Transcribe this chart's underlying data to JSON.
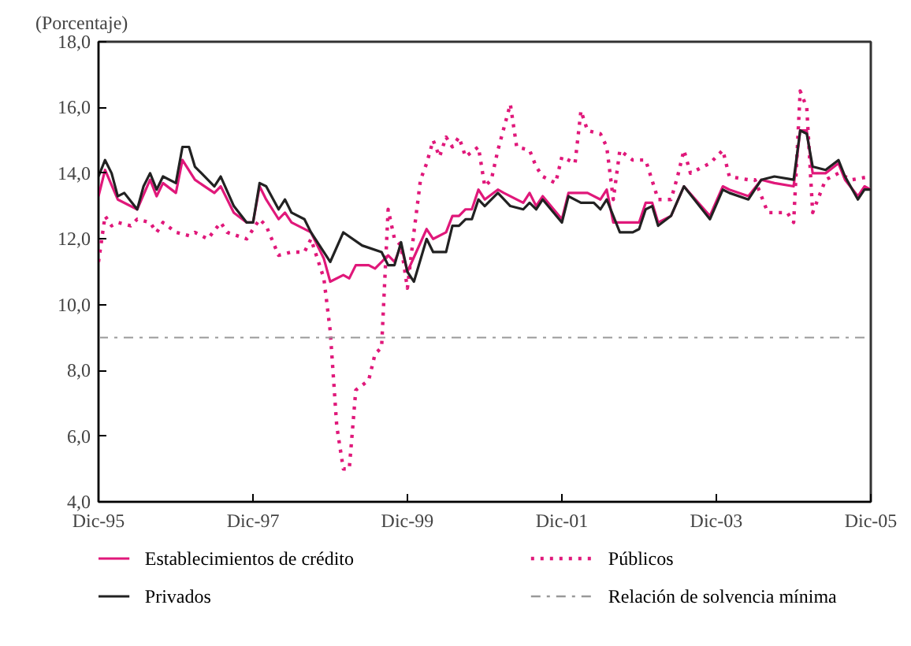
{
  "chart_data": {
    "type": "line",
    "ylabel": "(Porcentaje)",
    "xlim": [
      "1995-12",
      "2005-12"
    ],
    "ylim": [
      4,
      18
    ],
    "xticks": [
      {
        "value": "1995-12",
        "label": "Dic-95"
      },
      {
        "value": "1997-12",
        "label": "Dic-97"
      },
      {
        "value": "1999-12",
        "label": "Dic-99"
      },
      {
        "value": "2001-12",
        "label": "Dic-01"
      },
      {
        "value": "2003-12",
        "label": "Dic-03"
      },
      {
        "value": "2005-12",
        "label": "Dic-05"
      }
    ],
    "yticks": [
      {
        "value": 4,
        "label": "4,0"
      },
      {
        "value": 6,
        "label": "6,0"
      },
      {
        "value": 8,
        "label": "8,0"
      },
      {
        "value": 10,
        "label": "10,0"
      },
      {
        "value": 12,
        "label": "12,0"
      },
      {
        "value": 14,
        "label": "14,0"
      },
      {
        "value": 16,
        "label": "16,0"
      },
      {
        "value": 18,
        "label": "18,0"
      }
    ],
    "grid": false,
    "legend": "bottom",
    "series": [
      {
        "name": "Establecimientos de crédito",
        "color": "#e0187a",
        "line_style": "solid",
        "x": [
          "1995-12",
          "1996-01",
          "1996-03",
          "1996-06",
          "1996-08",
          "1996-09",
          "1996-10",
          "1996-12",
          "1997-01",
          "1997-03",
          "1997-06",
          "1997-07",
          "1997-09",
          "1997-11",
          "1997-12",
          "1998-01",
          "1998-02",
          "1998-04",
          "1998-05",
          "1998-06",
          "1998-09",
          "1998-11",
          "1998-12",
          "1999-02",
          "1999-03",
          "1999-04",
          "1999-06",
          "1999-07",
          "1999-09",
          "1999-10",
          "1999-11",
          "1999-12",
          "2000-03",
          "2000-04",
          "2000-06",
          "2000-07",
          "2000-08",
          "2000-09",
          "2000-10",
          "2000-11",
          "2000-12",
          "2001-02",
          "2001-03",
          "2001-06",
          "2001-07",
          "2001-08",
          "2001-09",
          "2001-12",
          "2002-01",
          "2002-04",
          "2002-06",
          "2002-07",
          "2002-08",
          "2002-12",
          "2003-01",
          "2003-02",
          "2003-03",
          "2003-05",
          "2003-07",
          "2003-11",
          "2004-01",
          "2004-02",
          "2004-05",
          "2004-07",
          "2004-09",
          "2004-12",
          "2005-01",
          "2005-02",
          "2005-03",
          "2005-05",
          "2005-07",
          "2005-08",
          "2005-10",
          "2005-11",
          "2005-12"
        ],
        "values": [
          13.3,
          14.1,
          13.2,
          12.9,
          13.8,
          13.3,
          13.7,
          13.4,
          14.4,
          13.8,
          13.4,
          13.6,
          12.8,
          12.5,
          12.5,
          13.6,
          13.2,
          12.6,
          12.8,
          12.5,
          12.2,
          11.4,
          10.7,
          10.9,
          10.8,
          11.2,
          11.2,
          11.1,
          11.5,
          11.3,
          11.8,
          11.0,
          12.3,
          12.0,
          12.2,
          12.7,
          12.7,
          12.9,
          12.9,
          13.5,
          13.2,
          13.5,
          13.4,
          13.1,
          13.4,
          13.0,
          13.3,
          12.6,
          13.4,
          13.4,
          13.2,
          13.5,
          12.5,
          12.5,
          13.1,
          13.1,
          12.5,
          12.7,
          13.6,
          12.7,
          13.6,
          13.5,
          13.3,
          13.8,
          13.7,
          13.6,
          15.3,
          15.3,
          14.0,
          14.0,
          14.3,
          13.8,
          13.3,
          13.6,
          13.5
        ]
      },
      {
        "name": "Públicos",
        "color": "#e0187a",
        "line_style": "dotted",
        "x": [
          "1995-12",
          "1996-01",
          "1996-02",
          "1996-03",
          "1996-05",
          "1996-06",
          "1996-08",
          "1996-09",
          "1996-10",
          "1996-12",
          "1997-02",
          "1997-03",
          "1997-05",
          "1997-07",
          "1997-08",
          "1997-11",
          "1998-01",
          "1998-02",
          "1998-04",
          "1998-06",
          "1998-08",
          "1998-09",
          "1998-11",
          "1998-12",
          "1999-01",
          "1999-02",
          "1999-03",
          "1999-04",
          "1999-06",
          "1999-07",
          "1999-08",
          "1999-09",
          "1999-10",
          "1999-11",
          "1999-12",
          "2000-01",
          "2000-02",
          "2000-03",
          "2000-04",
          "2000-05",
          "2000-06",
          "2000-07",
          "2000-08",
          "2000-09",
          "2000-11",
          "2000-12",
          "2001-01",
          "2001-02",
          "2001-04",
          "2001-05",
          "2001-07",
          "2001-08",
          "2001-09",
          "2001-11",
          "2001-12",
          "2002-02",
          "2002-03",
          "2002-04",
          "2002-06",
          "2002-07",
          "2002-08",
          "2002-09",
          "2002-11",
          "2003-01",
          "2003-03",
          "2003-05",
          "2003-06",
          "2003-07",
          "2003-08",
          "2003-11",
          "2004-01",
          "2004-02",
          "2004-05",
          "2004-06",
          "2004-08",
          "2004-11",
          "2004-12",
          "2005-01",
          "2005-02",
          "2005-03",
          "2005-05",
          "2005-07",
          "2005-09",
          "2005-12"
        ],
        "values": [
          11.3,
          12.7,
          12.4,
          12.5,
          12.4,
          12.6,
          12.5,
          12.2,
          12.5,
          12.2,
          12.1,
          12.2,
          12.0,
          12.5,
          12.2,
          12.0,
          12.6,
          12.4,
          11.5,
          11.6,
          11.6,
          12.0,
          10.8,
          9.2,
          6.3,
          5.0,
          5.0,
          7.4,
          7.7,
          8.5,
          8.7,
          12.9,
          12.0,
          11.8,
          10.5,
          12.2,
          13.8,
          14.3,
          15.0,
          14.5,
          15.1,
          14.8,
          15.1,
          14.5,
          14.8,
          13.6,
          13.8,
          14.7,
          16.1,
          14.8,
          14.7,
          14.2,
          13.9,
          13.7,
          14.5,
          14.3,
          15.9,
          15.3,
          15.2,
          14.8,
          13.2,
          14.7,
          14.4,
          14.4,
          13.2,
          13.2,
          13.9,
          14.7,
          14.0,
          14.3,
          14.7,
          13.9,
          13.8,
          13.8,
          12.8,
          12.8,
          12.5,
          16.5,
          16.0,
          12.8,
          13.8,
          14.0,
          13.8,
          13.9
        ]
      },
      {
        "name": "Privados",
        "color": "#222222",
        "line_style": "solid",
        "x": [
          "1995-12",
          "1996-01",
          "1996-02",
          "1996-03",
          "1996-04",
          "1996-06",
          "1996-07",
          "1996-08",
          "1996-09",
          "1996-10",
          "1996-12",
          "1997-01",
          "1997-02",
          "1997-03",
          "1997-04",
          "1997-06",
          "1997-07",
          "1997-09",
          "1997-11",
          "1997-12",
          "1998-01",
          "1998-02",
          "1998-04",
          "1998-05",
          "1998-06",
          "1998-08",
          "1998-09",
          "1998-12",
          "1999-02",
          "1999-05",
          "1999-08",
          "1999-09",
          "1999-10",
          "1999-11",
          "1999-12",
          "2000-01",
          "2000-03",
          "2000-04",
          "2000-06",
          "2000-07",
          "2000-08",
          "2000-09",
          "2000-10",
          "2000-11",
          "2000-12",
          "2001-02",
          "2001-04",
          "2001-06",
          "2001-07",
          "2001-08",
          "2001-09",
          "2001-12",
          "2002-01",
          "2002-03",
          "2002-05",
          "2002-06",
          "2002-07",
          "2002-09",
          "2002-11",
          "2002-12",
          "2003-01",
          "2003-02",
          "2003-03",
          "2003-05",
          "2003-07",
          "2003-11",
          "2004-01",
          "2004-02",
          "2004-05",
          "2004-07",
          "2004-09",
          "2004-12",
          "2005-01",
          "2005-02",
          "2005-03",
          "2005-05",
          "2005-07",
          "2005-08",
          "2005-10",
          "2005-11",
          "2005-12"
        ],
        "values": [
          13.9,
          14.4,
          14.0,
          13.3,
          13.4,
          12.9,
          13.6,
          14.0,
          13.5,
          13.9,
          13.7,
          14.8,
          14.8,
          14.2,
          14.0,
          13.6,
          13.9,
          13.0,
          12.5,
          12.5,
          13.7,
          13.6,
          12.9,
          13.2,
          12.8,
          12.6,
          12.2,
          11.3,
          12.2,
          11.8,
          11.6,
          11.2,
          11.2,
          11.9,
          11.0,
          10.7,
          12.0,
          11.6,
          11.6,
          12.4,
          12.4,
          12.6,
          12.6,
          13.2,
          13.0,
          13.4,
          13.0,
          12.9,
          13.1,
          12.9,
          13.2,
          12.5,
          13.3,
          13.1,
          13.1,
          12.9,
          13.2,
          12.2,
          12.2,
          12.3,
          12.9,
          13.0,
          12.4,
          12.7,
          13.6,
          12.6,
          13.5,
          13.4,
          13.2,
          13.8,
          13.9,
          13.8,
          15.3,
          15.2,
          14.2,
          14.1,
          14.4,
          13.9,
          13.2,
          13.5,
          13.5
        ]
      }
    ],
    "ref_lines": [
      {
        "axis": "y",
        "value": 9,
        "label": "Relación de solvencia mínima",
        "color": "#999999",
        "line_style": "dashdot"
      }
    ]
  }
}
